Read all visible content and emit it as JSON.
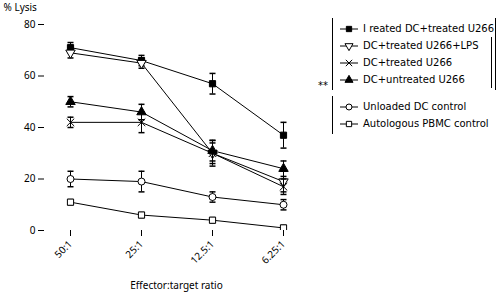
{
  "chart_data": {
    "type": "line",
    "xlabel": "Effector:target ratio",
    "ylabel": "% Lysis",
    "categories": [
      "50:1",
      "25:1",
      "12.5:1",
      "6.25:1"
    ],
    "series": [
      {
        "name": "I reated DC+treated U266",
        "color": "black",
        "marker": "square",
        "line_style": "solid",
        "values": [
          71,
          66,
          57,
          37
        ],
        "errors": [
          2,
          2,
          4,
          5
        ]
      },
      {
        "name": "DC+treated U266+LPS",
        "color": "black",
        "marker": "triangle_down_open",
        "line_style": "solid",
        "values": [
          69,
          65,
          30,
          19
        ],
        "errors": [
          2,
          2,
          4,
          4
        ]
      },
      {
        "name": "DC+treated U266",
        "color": "black",
        "marker": "x",
        "line_style": "solid",
        "values": [
          42,
          42,
          30,
          17
        ],
        "errors": [
          2,
          4,
          5,
          3
        ]
      },
      {
        "name": "DC+untreated U266",
        "color": "black",
        "marker": "triangle",
        "line_style": "solid",
        "values": [
          50,
          46,
          31,
          24
        ],
        "errors": [
          2,
          3,
          4,
          3
        ]
      },
      {
        "name": "Unloaded DC control",
        "color": "black",
        "marker": "circle_open",
        "line_style": "solid",
        "values": [
          20,
          19,
          13,
          10
        ],
        "errors": [
          3,
          4,
          2,
          2
        ]
      },
      {
        "name": "Autologous PBMC control",
        "color": "black",
        "marker": "square_open",
        "line_style": "solid",
        "values": [
          11,
          6,
          4,
          1
        ],
        "errors": [
          1,
          1,
          1,
          1
        ]
      }
    ],
    "ylim": [
      0,
      80
    ],
    "yticks": [
      0,
      20,
      40,
      60,
      80
    ],
    "grid": false,
    "legend": "right",
    "annotation": "**"
  }
}
